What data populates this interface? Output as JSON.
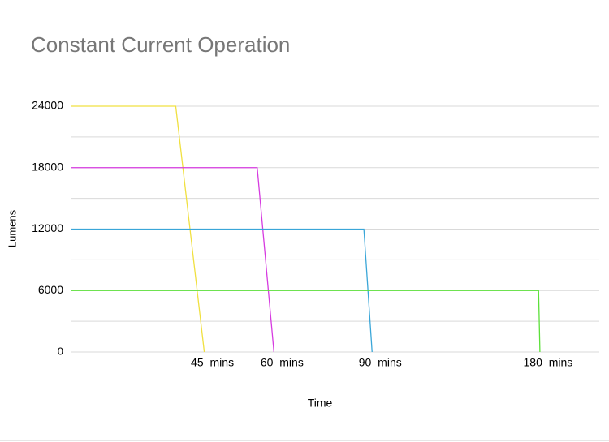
{
  "chart_data": {
    "type": "line",
    "title": "Constant Current Operation",
    "x_label": "Time",
    "y_label": "Lumens",
    "xscale": "log",
    "xlim": [
      26,
      230
    ],
    "xticks": [
      {
        "value": 45,
        "label": "45 mins"
      },
      {
        "value": 60,
        "label": "60 mins"
      },
      {
        "value": 90,
        "label": "90 mins"
      },
      {
        "value": 180,
        "label": "180 mins"
      }
    ],
    "ylim": [
      0,
      24000
    ],
    "yticks": [
      0,
      6000,
      12000,
      18000,
      24000
    ],
    "minor_grid": [
      3000,
      9000,
      15000,
      21000
    ],
    "grid": true,
    "series": [
      {
        "color": "#f0e040",
        "x": [
          26,
          40,
          45
        ],
        "values": [
          24000,
          24000,
          0
        ]
      },
      {
        "color": "#d63be0",
        "x": [
          26,
          56,
          60
        ],
        "values": [
          18000,
          18000,
          0
        ]
      },
      {
        "color": "#3aa6d8",
        "x": [
          26,
          87,
          90
        ],
        "values": [
          12000,
          12000,
          0
        ]
      },
      {
        "color": "#5ce03a",
        "x": [
          26,
          179,
          180
        ],
        "values": [
          6000,
          6000,
          0
        ]
      }
    ]
  }
}
